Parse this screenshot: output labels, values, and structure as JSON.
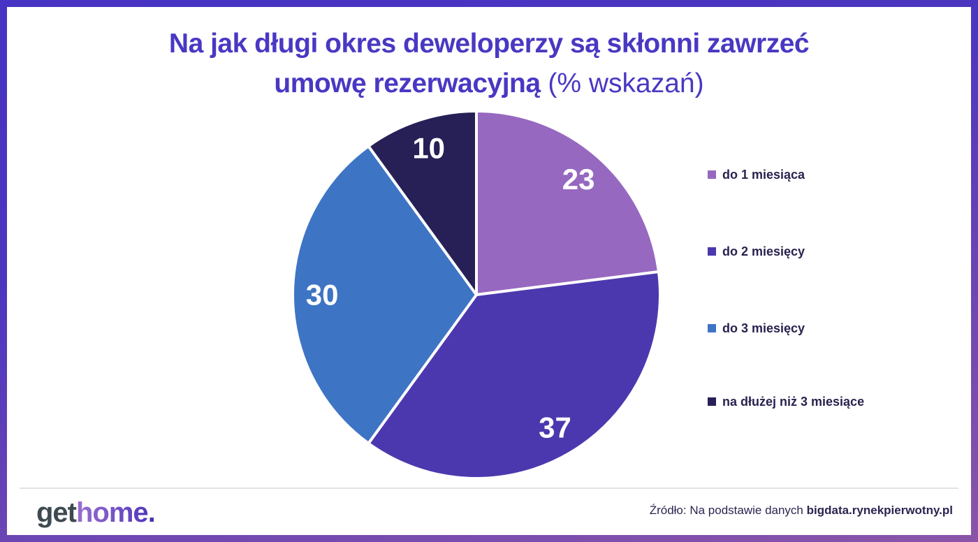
{
  "header": {
    "title_line1": "Na jak długi okres deweloperzy są skłonni zawrzeć",
    "title_line2_bold": "umowę rezerwacyjną",
    "title_line2_light": " (% wskazań)"
  },
  "chart_data": {
    "type": "pie",
    "title": "Na jak długi okres deweloperzy są skłonni zawrzeć umowę rezerwacyjną (% wskazań)",
    "labels": [
      "do 1 miesiąca",
      "do 2 miesięcy",
      "do 3 miesięcy",
      "na dłużej niż 3 miesiące"
    ],
    "values": [
      23,
      37,
      30,
      10
    ],
    "colors": [
      "#9768c0",
      "#4c38ae",
      "#3e74c4",
      "#262057"
    ],
    "total": 100,
    "start_angle_deg": 0,
    "direction": "clockwise",
    "legend_position": "right",
    "data_label_color": "#ffffff",
    "slice_border_color": "#ffffff"
  },
  "footer": {
    "logo_part1": "get",
    "logo_part2": "home",
    "logo_part3": ".",
    "source_prefix": "Źródło: Na podstawie danych ",
    "source_bold": "bigdata.rynekpierwotny.pl"
  },
  "colors": {
    "border_gradient_top": "#4733c4",
    "border_gradient_bottom": "#8a55a8",
    "title_text": "#4938c3",
    "legend_text": "#29224f",
    "logo_get": "#3e4a52",
    "logo_home_gradient_start": "#9a6fd0",
    "logo_home_gradient_end": "#5438bc",
    "source_text": "#2a2550"
  }
}
